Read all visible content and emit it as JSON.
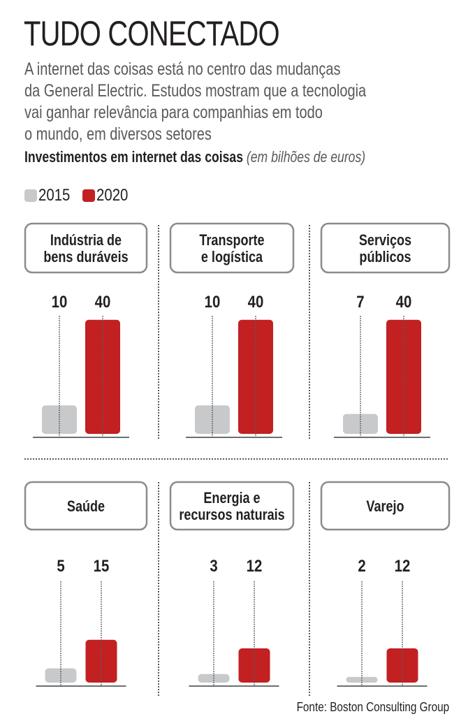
{
  "header": {
    "title": "TUDO CONECTADO",
    "description_lines": [
      "A internet das coisas está no centro das mudanças",
      "da General Electric. Estudos mostram que a tecnologia",
      "vai ganhar relevância para companhias em todo",
      "o mundo, em diversos setores"
    ],
    "subtitle_bold": "Investimentos em internet das coisas",
    "subtitle_italic": "(em bilhões de euros)"
  },
  "colors": {
    "series_2015": "#c8c9cb",
    "series_2020": "#c32022",
    "text": "#231f20",
    "box_border": "#8a8b8d"
  },
  "footer": {
    "source": "Fonte: Boston Consulting Group"
  },
  "chart_data": {
    "type": "bar",
    "title": "Investimentos em internet das coisas (em bilhões de euros)",
    "xlabel": "",
    "ylabel": "bilhões de euros",
    "ylim": [
      0,
      40
    ],
    "grid": false,
    "legend": {
      "position": "top-left",
      "entries": [
        {
          "label": "2015",
          "color": "#c8c9cb"
        },
        {
          "label": "2020",
          "color": "#c32022"
        }
      ]
    },
    "categories": [
      "Indústria de bens duráveis",
      "Transporte e logística",
      "Serviços públicos",
      "Saúde",
      "Energia e recursos naturais",
      "Varejo"
    ],
    "category_label_lines": [
      [
        "Indústria de",
        "bens duráveis"
      ],
      [
        "Transporte",
        "e logística"
      ],
      [
        "Serviços",
        "públicos"
      ],
      [
        "Saúde"
      ],
      [
        "Energia e",
        "recursos naturais"
      ],
      [
        "Varejo"
      ]
    ],
    "series": [
      {
        "name": "2015",
        "values": [
          10,
          10,
          7,
          5,
          3,
          2
        ]
      },
      {
        "name": "2020",
        "values": [
          40,
          40,
          40,
          15,
          12,
          12
        ]
      }
    ]
  }
}
